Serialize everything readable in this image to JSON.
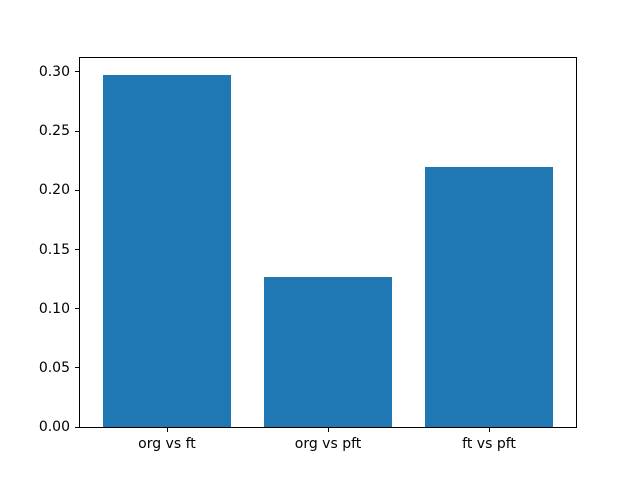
{
  "figure": {
    "background": "#ffffff"
  },
  "chart_data": {
    "type": "bar",
    "title": "",
    "xlabel": "",
    "ylabel": "",
    "categories": [
      "org vs ft",
      "org vs pft",
      "ft vs pft"
    ],
    "values": [
      0.297,
      0.127,
      0.22
    ],
    "bar_color": "#1f77b4",
    "bar_width_frac": 0.8,
    "xlim": [
      -0.54,
      2.54
    ],
    "ylim": [
      0,
      0.312
    ],
    "yticks": [
      0,
      0.05,
      0.1,
      0.15,
      0.2,
      0.25,
      0.3
    ],
    "ytick_decimals": 2,
    "grid": false,
    "legend": null,
    "axis_color": "#000000",
    "text_color": "#000000"
  }
}
